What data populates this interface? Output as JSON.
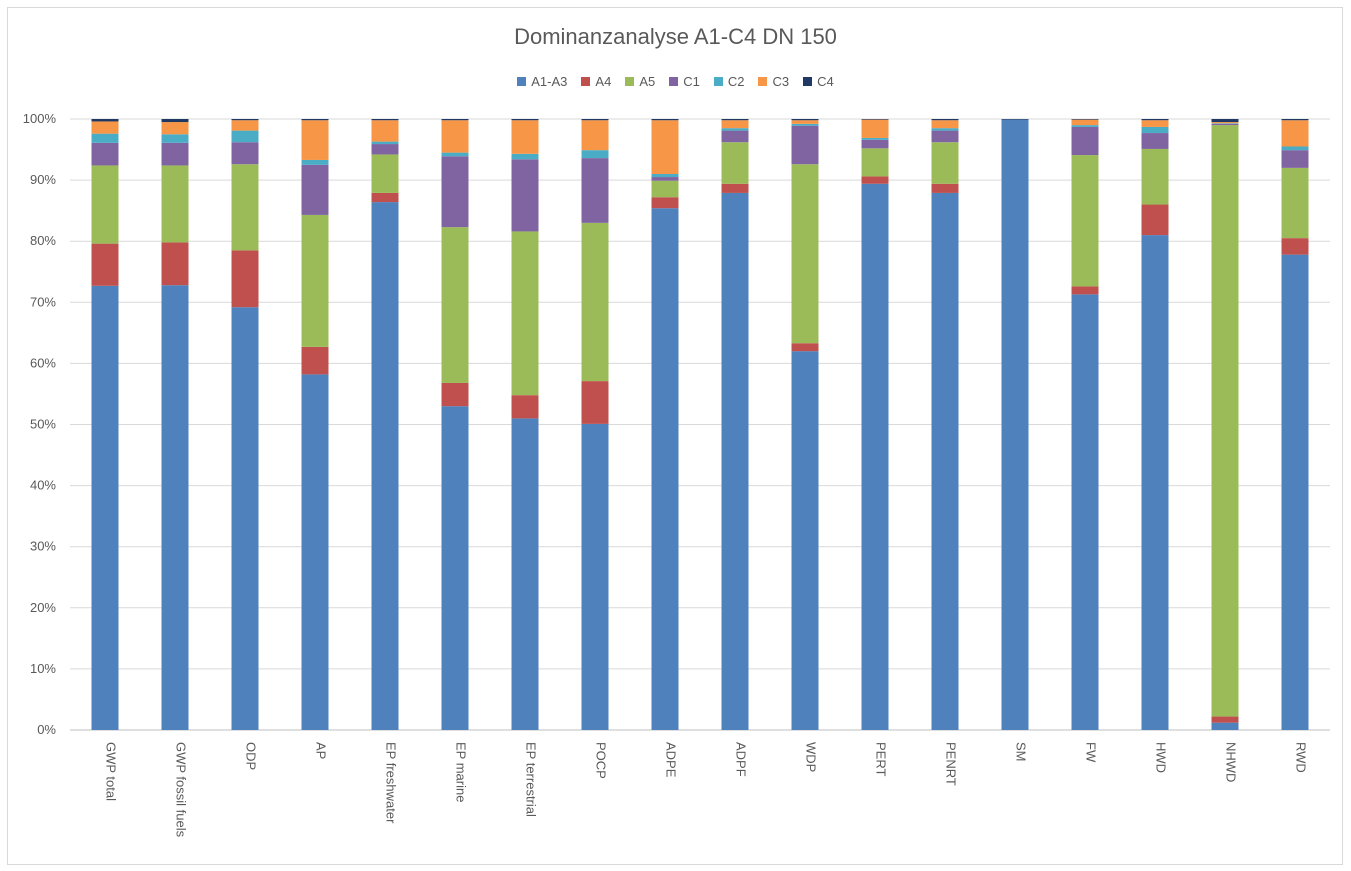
{
  "chart_data": {
    "type": "bar",
    "stacked": true,
    "percent": true,
    "title": "Dominanzanalyse A1-C4 DN 150",
    "xlabel": "",
    "ylabel": "",
    "ylim": [
      0,
      100
    ],
    "yticks": [
      "0%",
      "10%",
      "20%",
      "30%",
      "40%",
      "50%",
      "60%",
      "70%",
      "80%",
      "90%",
      "100%"
    ],
    "grid": true,
    "legend_position": "top",
    "categories": [
      "GWP total",
      "GWP fossil fuels",
      "ODP",
      "AP",
      "EP freshwater",
      "EP marine",
      "EP terrestrial",
      "POCP",
      "ADPE",
      "ADPF",
      "WDP",
      "PERT",
      "PENRT",
      "SM",
      "FW",
      "HWD",
      "NHWD",
      "RWD"
    ],
    "series": [
      {
        "name": "A1-A3",
        "color": "#4f81bd",
        "values": [
          72.7,
          72.8,
          69.2,
          58.2,
          86.4,
          53.0,
          51.0,
          50.1,
          85.4,
          87.9,
          62.0,
          89.4,
          87.9,
          99.9,
          71.3,
          81.0,
          1.2,
          77.8
        ]
      },
      {
        "name": "A4",
        "color": "#c0504d",
        "values": [
          6.9,
          7.0,
          9.3,
          4.5,
          1.5,
          3.8,
          3.8,
          7.0,
          1.8,
          1.5,
          1.3,
          1.2,
          1.5,
          0.0,
          1.3,
          5.0,
          1.0,
          2.7
        ]
      },
      {
        "name": "A5",
        "color": "#9bbb59",
        "values": [
          12.8,
          12.6,
          14.1,
          21.6,
          6.3,
          25.5,
          26.8,
          25.9,
          2.7,
          6.8,
          29.3,
          4.6,
          6.8,
          0.0,
          21.5,
          9.1,
          96.8,
          11.5
        ]
      },
      {
        "name": "C1",
        "color": "#8064a2",
        "values": [
          3.7,
          3.7,
          3.6,
          8.2,
          1.7,
          11.6,
          11.8,
          10.6,
          0.6,
          1.9,
          6.3,
          1.4,
          1.9,
          0.0,
          4.6,
          2.6,
          0.2,
          2.9
        ]
      },
      {
        "name": "C2",
        "color": "#4bacc6",
        "values": [
          1.5,
          1.4,
          1.9,
          0.8,
          0.4,
          0.6,
          0.9,
          1.3,
          0.5,
          0.4,
          0.3,
          0.3,
          0.4,
          0.0,
          0.3,
          1.0,
          0.1,
          0.6
        ]
      },
      {
        "name": "C3",
        "color": "#f79646",
        "values": [
          2.0,
          2.0,
          1.7,
          6.5,
          3.5,
          5.3,
          5.5,
          4.9,
          8.8,
          1.3,
          0.6,
          3.0,
          1.3,
          0.0,
          0.9,
          1.1,
          0.2,
          4.3
        ]
      },
      {
        "name": "C4",
        "color": "#1f3864",
        "values": [
          0.4,
          0.5,
          0.2,
          0.2,
          0.2,
          0.2,
          0.2,
          0.2,
          0.2,
          0.2,
          0.2,
          0.1,
          0.2,
          0.1,
          0.1,
          0.2,
          0.5,
          0.2
        ]
      }
    ]
  }
}
